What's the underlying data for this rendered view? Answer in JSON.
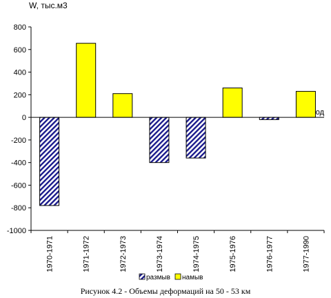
{
  "chart_data": {
    "type": "bar",
    "ylabel": "W, тыс.м3",
    "xlabel": "год",
    "ylim": [
      -1000,
      800
    ],
    "yticks": [
      -1000,
      -800,
      -600,
      -400,
      -200,
      0,
      200,
      400,
      600,
      800
    ],
    "ytick_labels": [
      "-1000",
      "-800",
      "-600",
      "-400",
      "-200",
      "0",
      "200",
      "400",
      "600",
      "800"
    ],
    "categories": [
      "1970-1971",
      "1971-1972",
      "1972-1973",
      "1973-1974",
      "1974-1975",
      "1975-1976",
      "1976-1977",
      "1977-1990"
    ],
    "series": [
      {
        "name": "размыв",
        "values": [
          -780,
          null,
          null,
          -400,
          -360,
          null,
          -20,
          null
        ],
        "fill": "hatch",
        "color": "#1a1a8c"
      },
      {
        "name": "намыв",
        "values": [
          null,
          655,
          210,
          null,
          null,
          260,
          null,
          230
        ],
        "fill": "solid",
        "color": "#ffff00"
      }
    ],
    "grid": false,
    "legend_position": "bottom",
    "caption": "Рисунок 4.2 - Объемы деформаций на 50 - 53 км"
  }
}
